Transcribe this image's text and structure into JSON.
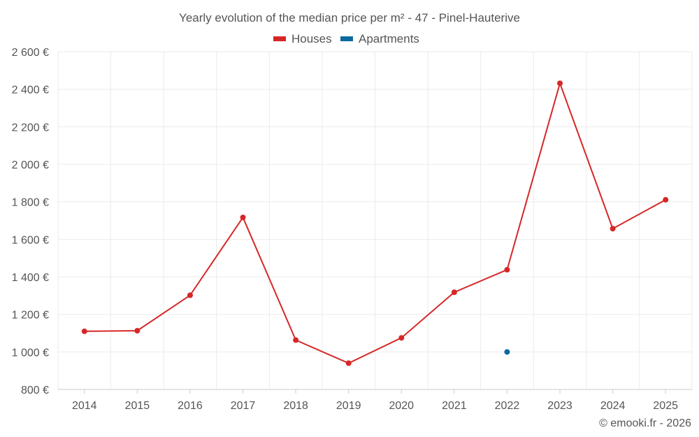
{
  "chart_data": {
    "type": "line",
    "title": "Yearly evolution of the median price per m² - 47 - Pinel-Hauterive",
    "categories": [
      "2014",
      "2015",
      "2016",
      "2017",
      "2018",
      "2019",
      "2020",
      "2021",
      "2022",
      "2023",
      "2024",
      "2025"
    ],
    "series": [
      {
        "name": "Houses",
        "color": "#d62728",
        "values": [
          1110,
          1113,
          1302,
          1717,
          1063,
          940,
          1075,
          1318,
          1438,
          2432,
          1657,
          1811
        ]
      },
      {
        "name": "Apartments",
        "color": "#0d6aa0",
        "values": [
          null,
          null,
          null,
          null,
          null,
          null,
          null,
          null,
          1000,
          null,
          null,
          null
        ]
      }
    ],
    "ylim": [
      800,
      2600
    ],
    "yticks": [
      800,
      1000,
      1200,
      1400,
      1600,
      1800,
      2000,
      2200,
      2400,
      2600
    ],
    "ytick_labels": [
      "800 €",
      "1 000 €",
      "1 200 €",
      "1 400 €",
      "1 600 €",
      "1 800 €",
      "2 000 €",
      "2 200 €",
      "2 400 €",
      "2 600 €"
    ],
    "xlabel": "",
    "ylabel": "",
    "grid": true,
    "legend": "top-center",
    "credit": "© emooki.fr - 2026"
  }
}
